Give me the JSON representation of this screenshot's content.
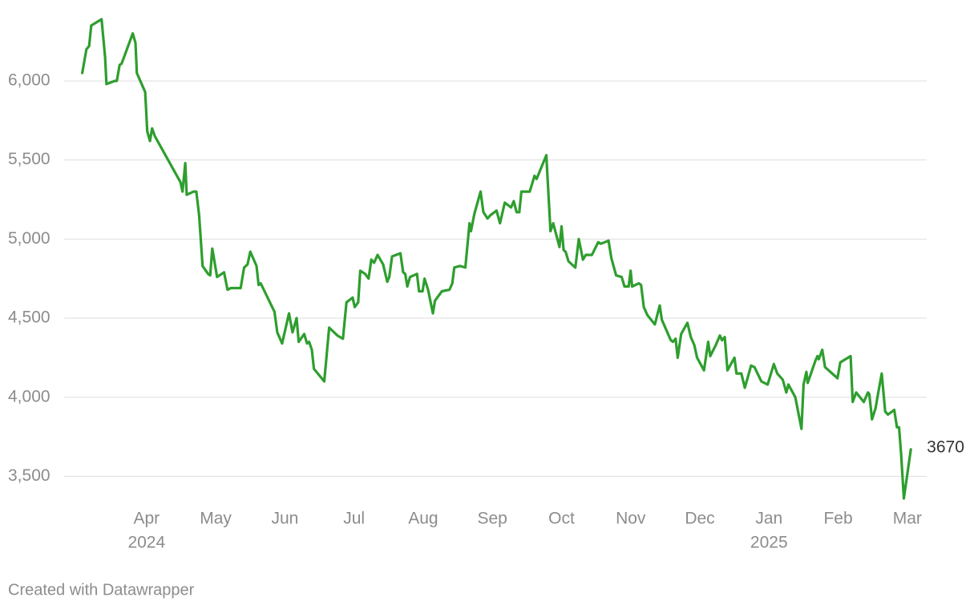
{
  "chart_data": {
    "type": "line",
    "credit": "Created with Datawrapper",
    "x": [
      3.07,
      3.13,
      3.17,
      3.2,
      3.35,
      3.4,
      3.42,
      3.54,
      3.57,
      3.61,
      3.64,
      3.8,
      3.84,
      3.86,
      3.98,
      4.01,
      4.05,
      4.08,
      4.12,
      4.49,
      4.52,
      4.56,
      4.58,
      4.68,
      4.72,
      4.76,
      4.81,
      4.89,
      4.92,
      4.95,
      5.02,
      5.12,
      5.17,
      5.22,
      5.36,
      5.41,
      5.46,
      5.5,
      5.59,
      5.62,
      5.65,
      5.85,
      5.89,
      5.96,
      6.06,
      6.11,
      6.17,
      6.2,
      6.28,
      6.32,
      6.35,
      6.39,
      6.42,
      6.57,
      6.64,
      6.76,
      6.84,
      6.89,
      6.98,
      7.01,
      7.06,
      7.09,
      7.16,
      7.21,
      7.25,
      7.29,
      7.34,
      7.42,
      7.48,
      7.51,
      7.55,
      7.67,
      7.71,
      7.74,
      7.77,
      7.81,
      7.91,
      7.94,
      7.99,
      8.02,
      8.07,
      8.14,
      8.17,
      8.27,
      8.38,
      8.42,
      8.45,
      8.53,
      8.61,
      8.67,
      8.69,
      8.74,
      8.83,
      8.87,
      8.93,
      8.97,
      9.06,
      9.11,
      9.18,
      9.27,
      9.31,
      9.35,
      9.39,
      9.42,
      9.54,
      9.61,
      9.64,
      9.78,
      9.84,
      9.88,
      9.97,
      10.0,
      10.03,
      10.06,
      10.1,
      10.2,
      10.25,
      10.31,
      10.35,
      10.44,
      10.53,
      10.57,
      10.68,
      10.72,
      10.79,
      10.87,
      10.91,
      10.97,
      11.0,
      11.02,
      11.12,
      11.15,
      11.19,
      11.24,
      11.35,
      11.42,
      11.45,
      11.52,
      11.58,
      11.61,
      11.65,
      11.68,
      11.73,
      11.82,
      11.87,
      11.92,
      11.96,
      12.06,
      12.12,
      12.15,
      12.23,
      12.29,
      12.32,
      12.36,
      12.4,
      12.5,
      12.53,
      12.6,
      12.65,
      12.69,
      12.74,
      12.79,
      12.89,
      12.98,
      13.07,
      13.12,
      13.2,
      13.25,
      13.28,
      13.33,
      13.38,
      13.47,
      13.5,
      13.54,
      13.56,
      13.67,
      13.7,
      13.72,
      13.77,
      13.81,
      13.99,
      14.03,
      14.18,
      14.21,
      14.26,
      14.37,
      14.43,
      14.45,
      14.49,
      14.54,
      14.58,
      14.63,
      14.68,
      14.72,
      14.81,
      14.85,
      14.88,
      14.91,
      14.95,
      15.05
    ],
    "series": [
      {
        "color": "#2e9e2e",
        "values": [
          6050,
          6200,
          6220,
          6350,
          6390,
          6150,
          5980,
          6000,
          6000,
          6100,
          6110,
          6300,
          6240,
          6050,
          5930,
          5680,
          5620,
          5700,
          5650,
          5360,
          5300,
          5480,
          5280,
          5300,
          5300,
          5150,
          4830,
          4780,
          4770,
          4940,
          4760,
          4790,
          4680,
          4690,
          4690,
          4820,
          4840,
          4920,
          4830,
          4710,
          4720,
          4540,
          4410,
          4340,
          4530,
          4410,
          4500,
          4350,
          4400,
          4340,
          4350,
          4300,
          4180,
          4100,
          4440,
          4390,
          4370,
          4600,
          4630,
          4570,
          4600,
          4800,
          4780,
          4750,
          4870,
          4850,
          4900,
          4840,
          4730,
          4760,
          4890,
          4910,
          4790,
          4780,
          4700,
          4760,
          4780,
          4670,
          4670,
          4750,
          4680,
          4530,
          4610,
          4670,
          4680,
          4720,
          4820,
          4830,
          4820,
          5100,
          5050,
          5160,
          5300,
          5170,
          5130,
          5150,
          5180,
          5100,
          5230,
          5200,
          5240,
          5170,
          5170,
          5300,
          5300,
          5400,
          5380,
          5530,
          5050,
          5100,
          4950,
          5080,
          4930,
          4920,
          4860,
          4820,
          5000,
          4870,
          4900,
          4900,
          4980,
          4970,
          4990,
          4880,
          4770,
          4760,
          4700,
          4700,
          4800,
          4700,
          4720,
          4710,
          4570,
          4520,
          4460,
          4580,
          4490,
          4420,
          4360,
          4350,
          4370,
          4250,
          4400,
          4470,
          4380,
          4330,
          4250,
          4170,
          4350,
          4260,
          4330,
          4390,
          4360,
          4380,
          4170,
          4250,
          4150,
          4150,
          4060,
          4120,
          4200,
          4190,
          4100,
          4080,
          4210,
          4150,
          4110,
          4030,
          4080,
          4040,
          4000,
          3800,
          4080,
          4160,
          4090,
          4230,
          4260,
          4240,
          4300,
          4190,
          4120,
          4220,
          4260,
          3970,
          4030,
          3970,
          4030,
          4020,
          3860,
          3930,
          4030,
          4150,
          3910,
          3890,
          3920,
          3810,
          3810,
          3640,
          3360,
          3670
        ]
      }
    ],
    "xlim": [
      3.04,
      15.28
    ],
    "xticks": [
      {
        "value": 4,
        "label": "Apr"
      },
      {
        "value": 5,
        "label": "May"
      },
      {
        "value": 6,
        "label": "Jun"
      },
      {
        "value": 7,
        "label": "Jul"
      },
      {
        "value": 8,
        "label": "Aug"
      },
      {
        "value": 9,
        "label": "Sep"
      },
      {
        "value": 10,
        "label": "Oct"
      },
      {
        "value": 11,
        "label": "Nov"
      },
      {
        "value": 12,
        "label": "Dec"
      },
      {
        "value": 13,
        "label": "Jan"
      },
      {
        "value": 14,
        "label": "Feb"
      },
      {
        "value": 15,
        "label": "Mar"
      }
    ],
    "year_labels": [
      {
        "value": 4,
        "label": "2024"
      },
      {
        "value": 13,
        "label": "2025"
      }
    ],
    "ylim": [
      3350,
      6400
    ],
    "yticks": [
      {
        "value": 3500,
        "label": "3,500"
      },
      {
        "value": 4000,
        "label": "4,000"
      },
      {
        "value": 4500,
        "label": "4,500"
      },
      {
        "value": 5000,
        "label": "5,000"
      },
      {
        "value": 5500,
        "label": "5,500"
      },
      {
        "value": 6000,
        "label": "6,000"
      }
    ],
    "grid": true,
    "end_label": true
  }
}
